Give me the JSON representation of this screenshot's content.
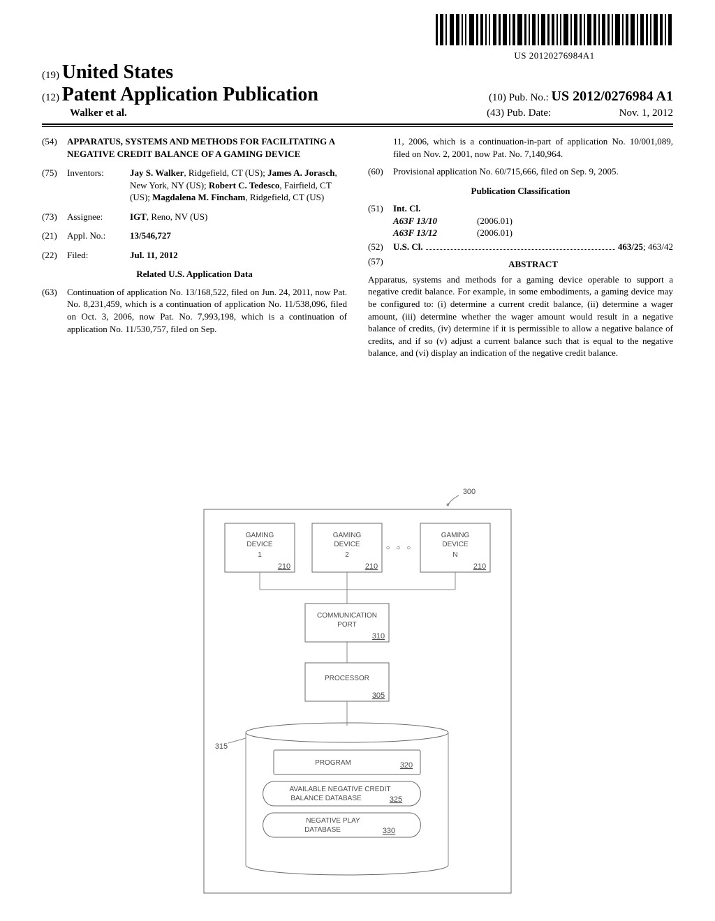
{
  "barcode_text": "US 20120276984A1",
  "header": {
    "code19": "(19)",
    "country": "United States",
    "code12": "(12)",
    "pub_type": "Patent Application Publication",
    "code10": "(10)",
    "pub_no_label": "Pub. No.:",
    "pub_no": "US 2012/0276984 A1",
    "authors": "Walker et al.",
    "code43": "(43)",
    "pub_date_label": "Pub. Date:",
    "pub_date": "Nov. 1, 2012"
  },
  "title": {
    "code": "(54)",
    "text": "APPARATUS, SYSTEMS AND METHODS FOR FACILITATING A NEGATIVE CREDIT BALANCE OF A GAMING DEVICE"
  },
  "inventors": {
    "code": "(75)",
    "label": "Inventors:",
    "text_html": "<b>Jay S. Walker</b>, Ridgefield, CT (US); <b>James A. Jorasch</b>, New York, NY (US); <b>Robert C. Tedesco</b>, Fairfield, CT (US); <b>Magdalena M. Fincham</b>, Ridgefield, CT (US)"
  },
  "assignee": {
    "code": "(73)",
    "label": "Assignee:",
    "text": "IGT",
    "loc": ", Reno, NV (US)"
  },
  "appl_no": {
    "code": "(21)",
    "label": "Appl. No.:",
    "text": "13/546,727"
  },
  "filed": {
    "code": "(22)",
    "label": "Filed:",
    "text": "Jul. 11, 2012"
  },
  "related_heading": "Related U.S. Application Data",
  "continuation": {
    "code": "(63)",
    "text": "Continuation of application No. 13/168,522, filed on Jun. 24, 2011, now Pat. No. 8,231,459, which is a continuation of application No. 11/538,096, filed on Oct. 3, 2006, now Pat. No. 7,993,198, which is a continuation of application No. 11/530,757, filed on Sep."
  },
  "continuation2": "11, 2006, which is a continuation-in-part of application No. 10/001,089, filed on Nov. 2, 2001, now Pat. No. 7,140,964.",
  "provisional": {
    "code": "(60)",
    "text": "Provisional application No. 60/715,666, filed on Sep. 9, 2005."
  },
  "classification_heading": "Publication Classification",
  "intcl": {
    "code": "(51)",
    "label": "Int. Cl.",
    "rows": [
      {
        "cls": "A63F 13/10",
        "ver": "(2006.01)"
      },
      {
        "cls": "A63F 13/12",
        "ver": "(2006.01)"
      }
    ]
  },
  "uscl": {
    "code": "(52)",
    "label": "U.S. Cl.",
    "main": "463/25",
    "other": "; 463/42"
  },
  "abstract": {
    "code": "(57)",
    "heading": "ABSTRACT",
    "text": "Apparatus, systems and methods for a gaming device operable to support a negative credit balance. For example, in some embodiments, a gaming device may be configured to: (i) determine a current credit balance, (ii) determine a wager amount, (iii) determine whether the wager amount would result in a negative balance of credits, (iv) determine if it is permissible to allow a negative balance of credits, and if so (v) adjust a current balance such that is equal to the negative balance, and (vi) display an indication of the negative credit balance."
  },
  "figure": {
    "ref": "300",
    "boxes": {
      "gd1": {
        "title": "GAMING DEVICE",
        "sub": "1",
        "num": "210"
      },
      "gd2": {
        "title": "GAMING DEVICE",
        "sub": "2",
        "num": "210"
      },
      "gdn": {
        "title": "GAMING DEVICE",
        "sub": "N",
        "num": "210"
      },
      "comm": {
        "title": "COMMUNICATION PORT",
        "num": "310"
      },
      "proc": {
        "title": "PROCESSOR",
        "num": "305"
      },
      "storage_num": "315",
      "program": {
        "title": "PROGRAM",
        "num": "320"
      },
      "db1": {
        "title": "AVAILABLE NEGATIVE CREDIT BALANCE DATABASE",
        "num": "325"
      },
      "db2": {
        "title": "NEGATIVE PLAY DATABASE",
        "num": "330"
      }
    },
    "ellipsis": "○ ○ ○",
    "colors": {
      "stroke": "#6a6a6a",
      "text": "#4a4a4a"
    }
  }
}
